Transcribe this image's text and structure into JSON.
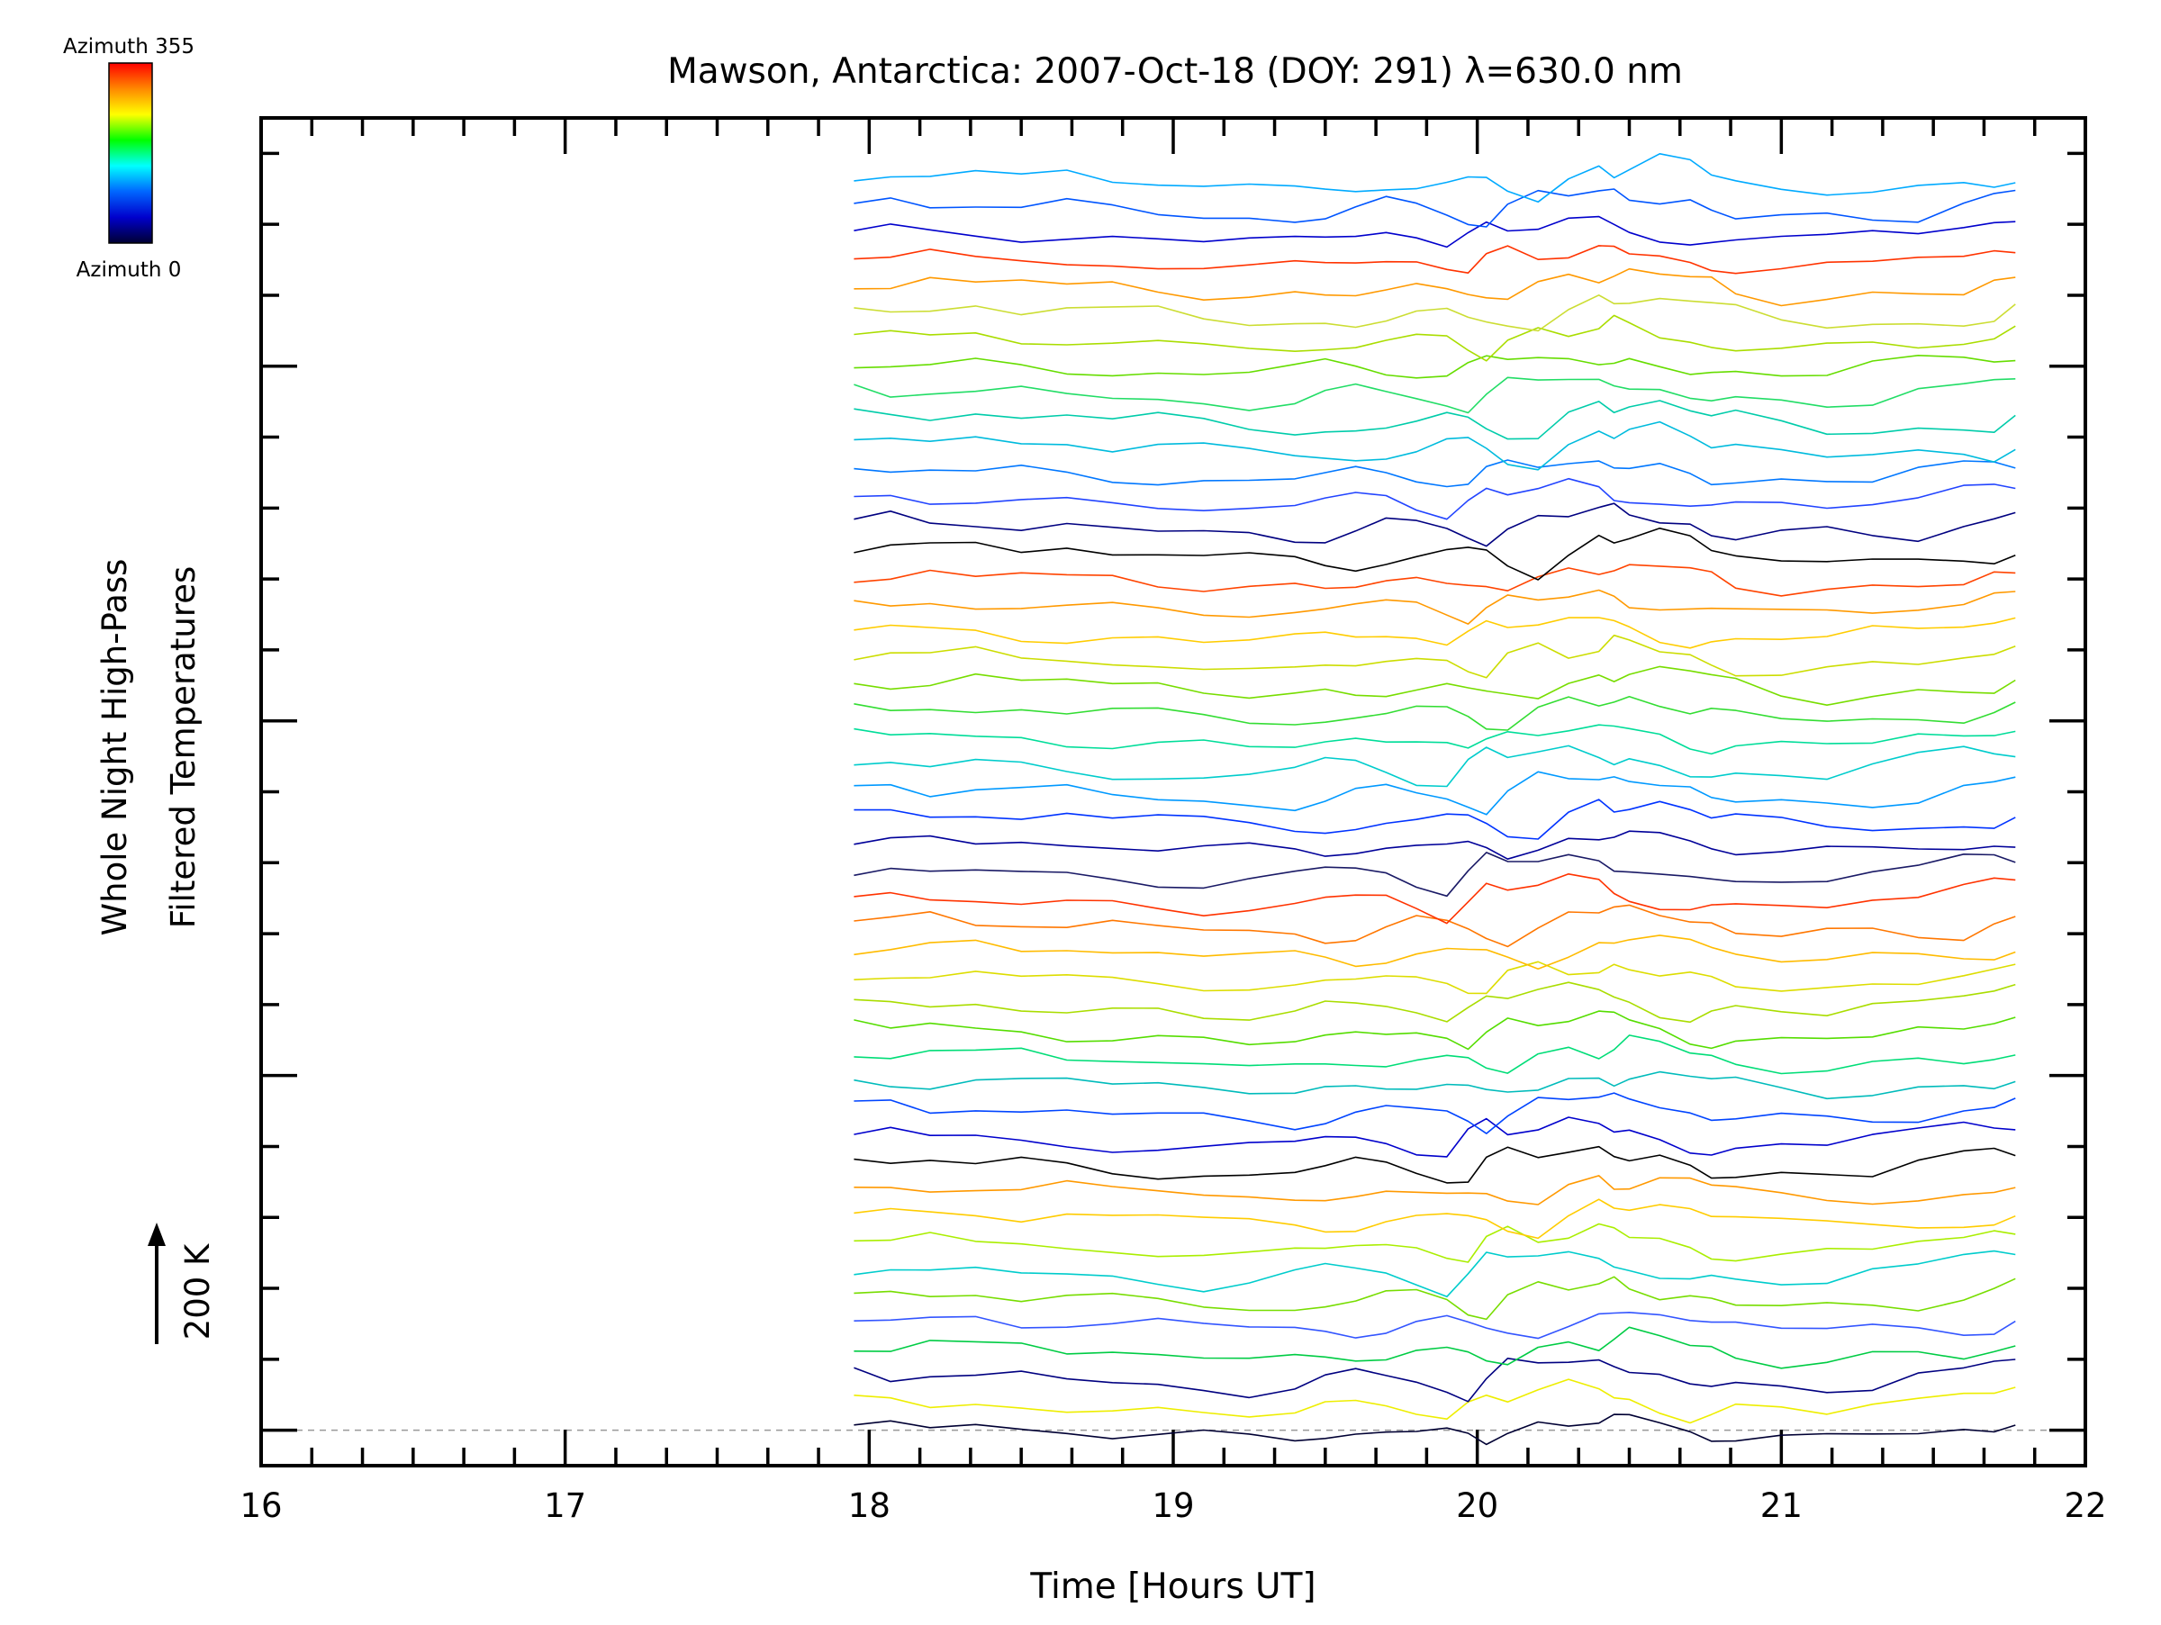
{
  "chart_data": {
    "type": "line",
    "title": "Mawson, Antarctica: 2007-Oct-18 (DOY: 291) λ=630.0 nm",
    "xlabel": "Time [Hours UT]",
    "ylabel_line1": "Whole Night High-Pass",
    "ylabel_line2": "Filtered Temperatures",
    "scale_label": "200 K",
    "colorbar": {
      "top_label": "Azimuth 355",
      "bottom_label": "Azimuth 0",
      "colors": [
        "#ff0000",
        "#ff8800",
        "#ffff00",
        "#00ff00",
        "#00ffff",
        "#0066ff",
        "#0000cc",
        "#000033"
      ]
    },
    "xlim": [
      16,
      22
    ],
    "x_ticks": [
      16,
      17,
      18,
      19,
      20,
      21,
      22
    ],
    "x_tick_labels": [
      "16",
      "17",
      "18",
      "19",
      "20",
      "21",
      "22"
    ],
    "x_minor_step": 0.166667,
    "ylim": [
      -100,
      3700
    ],
    "y_major_ticks": [
      0,
      1000,
      2000,
      3000
    ],
    "y_minor_step": 200,
    "baseline": 0,
    "series_offset_K": 75,
    "series_count": 48,
    "x_range_data": [
      17.95,
      21.77
    ],
    "x": [
      17.95,
      18.07,
      18.2,
      18.35,
      18.5,
      18.65,
      18.8,
      18.95,
      19.1,
      19.25,
      19.4,
      19.5,
      19.6,
      19.7,
      19.8,
      19.9,
      19.97,
      20.03,
      20.1,
      20.2,
      20.3,
      20.4,
      20.45,
      20.5,
      20.6,
      20.7,
      20.77,
      20.85,
      21.0,
      21.15,
      21.3,
      21.45,
      21.6,
      21.7,
      21.77
    ],
    "base_profile": [
      10,
      25,
      5,
      15,
      0,
      5,
      -10,
      -20,
      -25,
      -30,
      -40,
      -30,
      -10,
      10,
      5,
      -10,
      -40,
      -60,
      5,
      45,
      20,
      35,
      60,
      40,
      15,
      10,
      -20,
      -40,
      -30,
      -20,
      -25,
      -30,
      5,
      20,
      40
    ],
    "series_colors": [
      "#000033",
      "#eeee00",
      "#000080",
      "#00cc44",
      "#3355ff",
      "#77dd00",
      "#00cccc",
      "#aaee00",
      "#ffcc00",
      "#ff9900",
      "#000000",
      "#0000cc",
      "#0044ff",
      "#00bbbb",
      "#00dd77",
      "#55dd00",
      "#aadd00",
      "#dddd00",
      "#ffbb00",
      "#ff7700",
      "#ff3300",
      "#1a1a66",
      "#000099",
      "#0033ff",
      "#0099ff",
      "#00cccc",
      "#00dd99",
      "#33dd33",
      "#77dd00",
      "#ccdd00",
      "#ffcc00",
      "#ff9900",
      "#ff4400",
      "#000000",
      "#000080",
      "#2244ff",
      "#0077ff",
      "#00bbdd",
      "#00ccaa",
      "#22dd66",
      "#66dd00",
      "#aadd00",
      "#ccdd33",
      "#ff9900",
      "#ff3300",
      "#0000cc",
      "#0055ff",
      "#00aaff"
    ]
  }
}
